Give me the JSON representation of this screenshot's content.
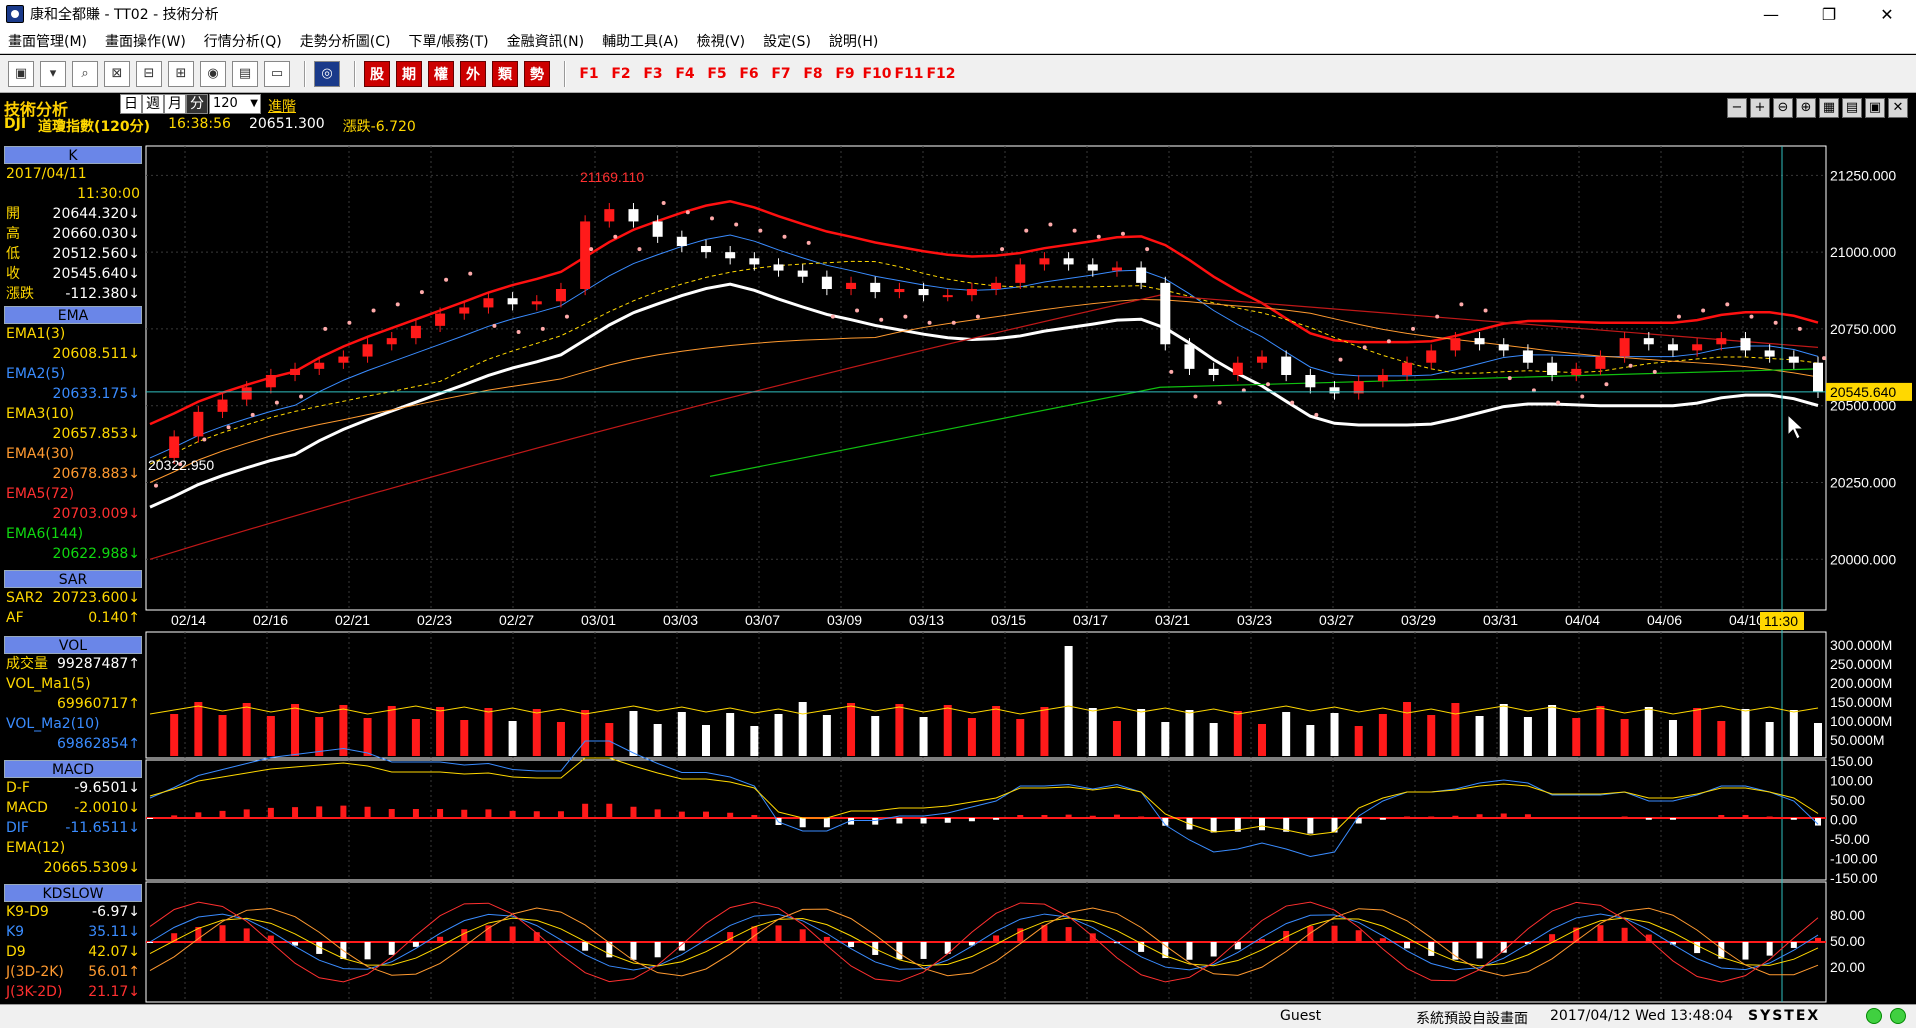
{
  "window": {
    "title": "康和全都賺 - TT02 - 技術分析",
    "minimize": "—",
    "maximize": "❐",
    "close": "✕"
  },
  "menu": [
    "畫面管理(M)",
    "畫面操作(W)",
    "行情分析(Q)",
    "走勢分析圖(C)",
    "下單/帳務(T)",
    "金融資訊(N)",
    "輔助工具(A)",
    "檢視(V)",
    "設定(S)",
    "說明(H)"
  ],
  "toolbar": {
    "tool_icons": [
      "layout-icon",
      "save-screen-icon",
      "zoom-icon",
      "close-window-icon",
      "split-icon",
      "restore-icon",
      "coin-icon",
      "print-icon",
      "monitor-icon",
      "home-icon"
    ],
    "red_buttons": [
      "股",
      "期",
      "權",
      "外",
      "類",
      "勢"
    ],
    "function_keys": [
      "F1",
      "F2",
      "F3",
      "F4",
      "F5",
      "F6",
      "F7",
      "F8",
      "F9",
      "F10",
      "F11",
      "F12"
    ]
  },
  "header": {
    "title": "技術分析",
    "period_tabs": [
      "日",
      "週",
      "月",
      "分"
    ],
    "active_period": "分",
    "interval": "120",
    "advanced": "進階",
    "symbol": "DJI",
    "name": "道瓊指數(120分)",
    "time": "16:38:56",
    "price": "20651.300",
    "change": "漲跌-6.720",
    "chart_tools": [
      "−",
      "+",
      "⊖",
      "⊕",
      "▦",
      "▤",
      "▣",
      "✕"
    ]
  },
  "left_panel": {
    "k": {
      "head": "K",
      "date": "2017/04/11",
      "time": "11:30:00",
      "rows": [
        {
          "label": "開",
          "value": "20644.320↓"
        },
        {
          "label": "高",
          "value": "20660.030↓"
        },
        {
          "label": "低",
          "value": "20512.560↓"
        },
        {
          "label": "收",
          "value": "20545.640↓"
        },
        {
          "label": "漲跌",
          "value": "-112.380↓"
        }
      ]
    },
    "ema": {
      "head": "EMA",
      "rows": [
        {
          "label": "EMA1(3)",
          "value": "20608.511↓",
          "color": "yellow"
        },
        {
          "label": "EMA2(5)",
          "value": "20633.175↓",
          "color": "blue"
        },
        {
          "label": "EMA3(10)",
          "value": "20657.853↓",
          "color": "yellow"
        },
        {
          "label": "EMA4(30)",
          "value": "20678.883↓",
          "color": "orange"
        },
        {
          "label": "EMA5(72)",
          "value": "20703.009↓",
          "color": "red"
        },
        {
          "label": "EMA6(144)",
          "value": "20622.988↓",
          "color": "green"
        }
      ]
    },
    "sar": {
      "head": "SAR",
      "rows": [
        {
          "label": "SAR2",
          "value": "20723.600↓"
        },
        {
          "label": "AF",
          "value": "0.140↑"
        }
      ]
    },
    "vol": {
      "head": "VOL",
      "rows": [
        {
          "label": "成交量",
          "value": "99287487↑"
        },
        {
          "label": "VOL_Ma1(5)",
          "value": ""
        },
        {
          "label": "",
          "value": "69960717↑"
        },
        {
          "label": "VOL_Ma2(10)",
          "value": ""
        },
        {
          "label": "",
          "value": "69862854↑"
        }
      ]
    },
    "macd": {
      "head": "MACD",
      "rows": [
        {
          "label": "D-F",
          "value": "-9.6501↓"
        },
        {
          "label": "MACD",
          "value": "-2.0010↓"
        },
        {
          "label": "DIF",
          "value": "-11.6511↓"
        },
        {
          "label": "EMA(12)",
          "value": ""
        },
        {
          "label": "",
          "value": "20665.5309↓"
        }
      ]
    },
    "kd": {
      "head": "KDSLOW",
      "rows": [
        {
          "label": "K9-D9",
          "value": "-6.97↓"
        },
        {
          "label": "K9",
          "value": "35.11↓"
        },
        {
          "label": "D9",
          "value": "42.07↓"
        },
        {
          "label": "J(3D-2K)",
          "value": "56.01↑"
        },
        {
          "label": "J(3K-2D)",
          "value": "21.17↓"
        }
      ]
    }
  },
  "main_chart": {
    "y_ticks": [
      "21250.000",
      "21000.000",
      "20750.000",
      "20500.000",
      "20250.000",
      "20000.000"
    ],
    "current_price_label": "20545.640",
    "high_marker": "21169.110",
    "low_marker": "20322.950",
    "x_ticks": [
      "02/14",
      "02/16",
      "02/21",
      "02/23",
      "02/27",
      "03/01",
      "03/03",
      "03/07",
      "03/09",
      "03/13",
      "03/15",
      "03/17",
      "03/21",
      "03/23",
      "03/27",
      "03/29",
      "03/31",
      "04/04",
      "04/06",
      "04/10"
    ],
    "cursor_time": "11:30"
  },
  "volume_chart": {
    "y_ticks": [
      "300.000M",
      "250.000M",
      "200.000M",
      "150.000M",
      "100.000M",
      "50.000M"
    ]
  },
  "macd_chart": {
    "y_ticks": [
      "150.00",
      "100.00",
      "50.00",
      "0.00",
      "-50.00",
      "-100.00",
      "-150.00"
    ]
  },
  "kd_chart": {
    "y_ticks": [
      "80.00",
      "50.00",
      "20.00"
    ]
  },
  "chart_data": {
    "type": "candlestick",
    "title": "道瓊指數(120分)",
    "y_range": [
      19900,
      21300
    ],
    "x_categories": [
      "02/14",
      "02/16",
      "02/21",
      "02/23",
      "02/27",
      "03/01",
      "03/03",
      "03/07",
      "03/09",
      "03/13",
      "03/15",
      "03/17",
      "03/21",
      "03/23",
      "03/27",
      "03/29",
      "03/31",
      "04/04",
      "04/06",
      "04/10"
    ],
    "close_path": [
      20330,
      20400,
      20480,
      20520,
      20560,
      20600,
      20620,
      20640,
      20660,
      20700,
      20720,
      20760,
      20800,
      20820,
      20850,
      20830,
      20840,
      20880,
      21100,
      21140,
      21100,
      21050,
      21020,
      21000,
      20980,
      20960,
      20940,
      20920,
      20880,
      20900,
      20870,
      20880,
      20860,
      20860,
      20880,
      20900,
      20960,
      20980,
      20960,
      20940,
      20950,
      20900,
      20700,
      20620,
      20600,
      20640,
      20660,
      20600,
      20560,
      20540,
      20580,
      20600,
      20640,
      20680,
      20720,
      20700,
      20680,
      20640,
      20600,
      20620,
      20660,
      20720,
      20700,
      20680,
      20700,
      20720,
      20680,
      20660,
      20640,
      20545
    ],
    "volume_ma_axis": "M"
  },
  "statusbar": {
    "user": "Guest",
    "screen": "系統預設自設畫面",
    "datetime": "2017/04/12 Wed 13:48:04",
    "brand": "SYSTEX"
  }
}
